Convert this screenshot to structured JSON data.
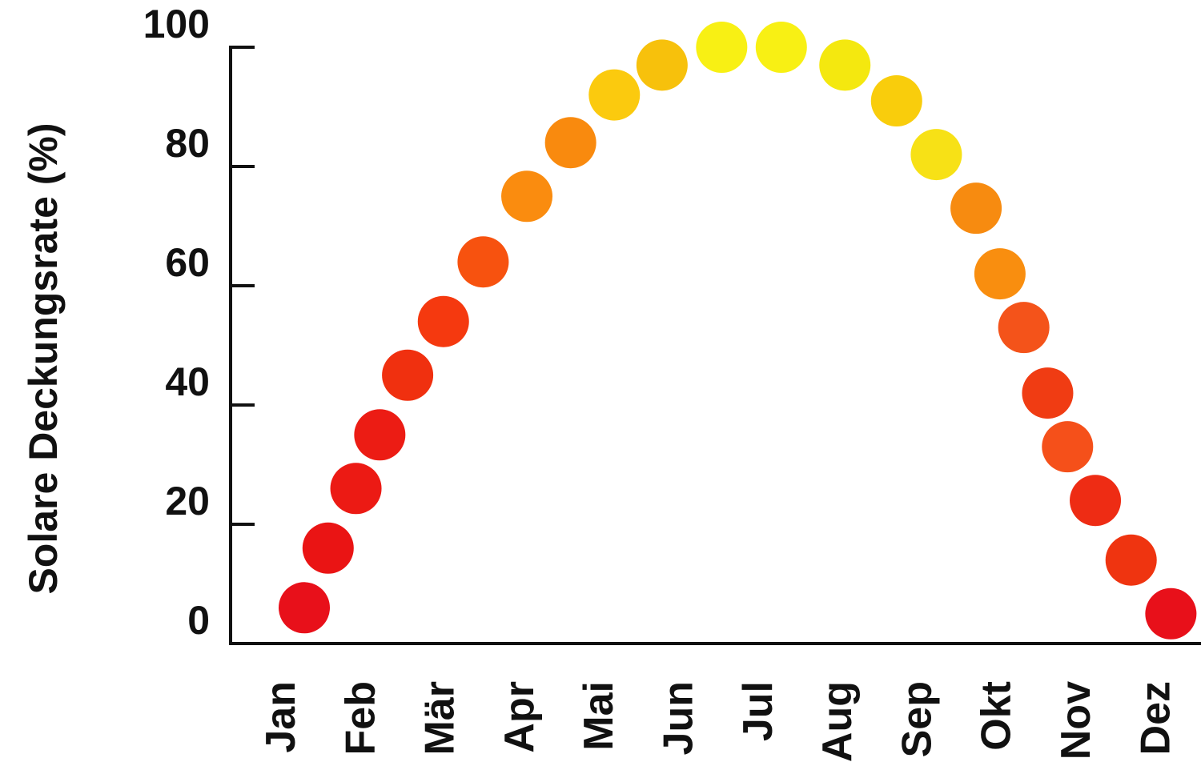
{
  "chart_data": {
    "type": "scatter",
    "title": "",
    "xlabel": "",
    "ylabel": "Solare Deckungsrate (%)",
    "ylim": [
      0,
      100
    ],
    "yticks": [
      "0",
      "20",
      "40",
      "60",
      "80",
      "100"
    ],
    "categories": [
      "Jan",
      "Feb",
      "Mär",
      "Apr",
      "Mai",
      "Jun",
      "Jul",
      "Aug",
      "Sep",
      "Okt",
      "Nov",
      "Dez"
    ],
    "grid": false,
    "legend": "none",
    "series": [
      {
        "x": [
          1.0,
          1.3,
          1.65,
          1.95,
          2.3,
          2.75,
          3.25,
          3.8,
          4.35,
          4.9,
          5.5,
          6.25,
          7.0,
          7.8,
          8.45,
          8.95,
          9.45,
          9.75,
          10.05,
          10.35,
          10.6,
          10.95,
          11.4,
          11.9
        ],
        "y": [
          6,
          16,
          26,
          35,
          45,
          54,
          64,
          75,
          84,
          92,
          97,
          100,
          100,
          97,
          91,
          82,
          73,
          62,
          53,
          42,
          33,
          24,
          14,
          5
        ],
        "colors": [
          "#e8101a",
          "#ea1414",
          "#ec1a14",
          "#ec1c14",
          "#f0300f",
          "#f5390f",
          "#f7520f",
          "#fa8c0f",
          "#f98a0e",
          "#fbca0e",
          "#f7c10c",
          "#f8f014",
          "#f8f014",
          "#f4e80f",
          "#f9cd0c",
          "#f7e116",
          "#f78b10",
          "#f98e0f",
          "#f4531a",
          "#f03c13",
          "#f5501a",
          "#ee2c14",
          "#ef3410",
          "#e8101a"
        ]
      }
    ]
  }
}
